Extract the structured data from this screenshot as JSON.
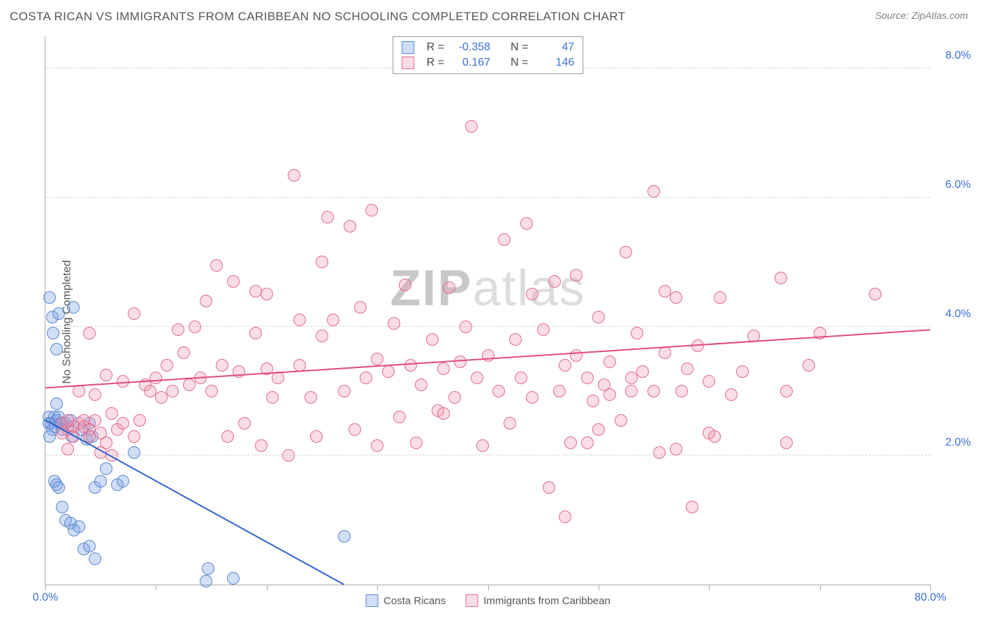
{
  "header": {
    "title": "COSTA RICAN VS IMMIGRANTS FROM CARIBBEAN NO SCHOOLING COMPLETED CORRELATION CHART",
    "source_prefix": "Source: ",
    "source_name": "ZipAtlas.com"
  },
  "chart": {
    "type": "scatter",
    "ylabel": "No Schooling Completed",
    "watermark": "ZIPatlas",
    "xlim": [
      0,
      80
    ],
    "ylim": [
      0,
      8.5
    ],
    "x_ticks": [
      0,
      10,
      20,
      30,
      40,
      50,
      60,
      70,
      80
    ],
    "x_tick_labels": {
      "0": "0.0%",
      "80": "80.0%"
    },
    "y_gridlines": [
      2,
      4,
      6,
      8
    ],
    "y_tick_labels": {
      "2": "2.0%",
      "4": "4.0%",
      "6": "6.0%",
      "8": "8.0%"
    },
    "background_color": "#ffffff",
    "grid_color": "#d5d5d5",
    "axis_color": "#aaaaaa",
    "label_color": "#3b6fd8",
    "marker_radius": 9,
    "marker_stroke_width": 1.2,
    "series": [
      {
        "key": "costa_ricans",
        "label": "Costa Ricans",
        "fill": "rgba(120,160,230,0.35)",
        "stroke": "#5b86d0",
        "trend": {
          "x1": 0,
          "y1": 2.55,
          "x2": 27,
          "y2": 0,
          "color": "#2e62c9",
          "width": 2
        },
        "R": "-0.358",
        "N": "47",
        "points": [
          [
            0.3,
            2.6
          ],
          [
            0.3,
            2.5
          ],
          [
            0.5,
            2.5
          ],
          [
            0.6,
            2.4
          ],
          [
            0.8,
            2.6
          ],
          [
            0.4,
            2.3
          ],
          [
            0.9,
            2.45
          ],
          [
            1.0,
            2.55
          ],
          [
            1.2,
            2.6
          ],
          [
            1.4,
            2.5
          ],
          [
            0.6,
            4.15
          ],
          [
            0.7,
            3.9
          ],
          [
            1.0,
            3.65
          ],
          [
            1.2,
            4.2
          ],
          [
            2.5,
            4.3
          ],
          [
            0.4,
            4.45
          ],
          [
            1.5,
            2.4
          ],
          [
            1.8,
            2.5
          ],
          [
            2.0,
            2.45
          ],
          [
            2.3,
            2.55
          ],
          [
            0.8,
            1.6
          ],
          [
            1.0,
            1.55
          ],
          [
            1.2,
            1.5
          ],
          [
            1.5,
            1.2
          ],
          [
            1.8,
            1.0
          ],
          [
            2.3,
            0.95
          ],
          [
            2.6,
            0.85
          ],
          [
            3.0,
            0.9
          ],
          [
            3.5,
            0.55
          ],
          [
            4.0,
            0.6
          ],
          [
            4.5,
            0.4
          ],
          [
            2.4,
            2.3
          ],
          [
            3.3,
            2.4
          ],
          [
            3.7,
            2.25
          ],
          [
            4.0,
            2.5
          ],
          [
            4.2,
            2.3
          ],
          [
            4.5,
            1.5
          ],
          [
            5.0,
            1.6
          ],
          [
            5.5,
            1.8
          ],
          [
            6.5,
            1.55
          ],
          [
            7.0,
            1.6
          ],
          [
            8.0,
            2.05
          ],
          [
            14.5,
            0.05
          ],
          [
            14.7,
            0.25
          ],
          [
            17.0,
            0.1
          ],
          [
            27.0,
            0.75
          ],
          [
            1.0,
            2.8
          ]
        ]
      },
      {
        "key": "caribbean",
        "label": "Immigrants from Caribbean",
        "fill": "rgba(240,150,175,0.32)",
        "stroke": "#e06a8e",
        "trend": {
          "x1": 0,
          "y1": 3.05,
          "x2": 80,
          "y2": 3.95,
          "color": "#e24a7a",
          "width": 2
        },
        "R": "0.167",
        "N": "146",
        "points": [
          [
            1.5,
            2.5
          ],
          [
            2.0,
            2.4
          ],
          [
            2.5,
            2.45
          ],
          [
            3.0,
            2.5
          ],
          [
            3.5,
            2.55
          ],
          [
            4.0,
            2.4
          ],
          [
            4.5,
            2.55
          ],
          [
            5.0,
            2.35
          ],
          [
            5.5,
            2.2
          ],
          [
            6.0,
            2.65
          ],
          [
            6.5,
            2.4
          ],
          [
            7.0,
            2.5
          ],
          [
            8.0,
            2.3
          ],
          [
            8.5,
            2.55
          ],
          [
            9.0,
            3.1
          ],
          [
            9.5,
            3.0
          ],
          [
            10,
            3.2
          ],
          [
            10.5,
            2.9
          ],
          [
            11,
            3.4
          ],
          [
            11.5,
            3.0
          ],
          [
            12,
            3.95
          ],
          [
            12.5,
            3.6
          ],
          [
            13,
            3.1
          ],
          [
            13.5,
            4.0
          ],
          [
            14,
            3.2
          ],
          [
            14.5,
            4.4
          ],
          [
            15,
            3.0
          ],
          [
            15.5,
            4.95
          ],
          [
            16,
            3.4
          ],
          [
            16.5,
            2.3
          ],
          [
            17,
            4.7
          ],
          [
            17.5,
            3.3
          ],
          [
            18,
            2.5
          ],
          [
            19,
            3.9
          ],
          [
            19.5,
            2.15
          ],
          [
            20,
            4.5
          ],
          [
            20.5,
            2.9
          ],
          [
            21,
            3.2
          ],
          [
            22,
            2.0
          ],
          [
            22.5,
            6.35
          ],
          [
            23,
            3.4
          ],
          [
            24,
            2.9
          ],
          [
            24.5,
            2.3
          ],
          [
            25,
            3.85
          ],
          [
            25.5,
            5.7
          ],
          [
            26,
            4.1
          ],
          [
            27,
            3.0
          ],
          [
            27.5,
            5.55
          ],
          [
            28,
            2.4
          ],
          [
            28.5,
            4.3
          ],
          [
            29,
            3.2
          ],
          [
            29.5,
            5.8
          ],
          [
            30,
            3.5
          ],
          [
            30,
            2.15
          ],
          [
            31,
            3.3
          ],
          [
            31.5,
            4.05
          ],
          [
            32,
            2.6
          ],
          [
            32.5,
            4.65
          ],
          [
            33,
            3.4
          ],
          [
            33.5,
            2.2
          ],
          [
            34,
            3.1
          ],
          [
            35,
            3.8
          ],
          [
            35.5,
            2.7
          ],
          [
            36,
            3.35
          ],
          [
            36.5,
            4.6
          ],
          [
            37,
            2.9
          ],
          [
            37.5,
            3.45
          ],
          [
            38,
            4.0
          ],
          [
            38.5,
            7.1
          ],
          [
            39,
            3.2
          ],
          [
            39.5,
            2.15
          ],
          [
            40,
            3.55
          ],
          [
            41,
            3.0
          ],
          [
            41.5,
            5.35
          ],
          [
            42,
            2.5
          ],
          [
            42.5,
            3.8
          ],
          [
            43,
            3.2
          ],
          [
            43.5,
            5.6
          ],
          [
            44,
            2.9
          ],
          [
            45,
            3.95
          ],
          [
            45.5,
            1.5
          ],
          [
            46,
            4.7
          ],
          [
            46.5,
            3.0
          ],
          [
            47,
            3.4
          ],
          [
            47.5,
            2.2
          ],
          [
            48,
            4.8
          ],
          [
            49,
            3.2
          ],
          [
            49.5,
            2.85
          ],
          [
            50,
            4.15
          ],
          [
            50.5,
            3.1
          ],
          [
            51,
            3.45
          ],
          [
            52,
            2.55
          ],
          [
            52.5,
            5.15
          ],
          [
            53,
            3.0
          ],
          [
            53.5,
            3.9
          ],
          [
            54,
            3.3
          ],
          [
            55,
            6.1
          ],
          [
            55.5,
            2.05
          ],
          [
            56,
            3.6
          ],
          [
            57,
            4.45
          ],
          [
            57.5,
            3.0
          ],
          [
            58,
            3.35
          ],
          [
            58.5,
            1.2
          ],
          [
            59,
            3.7
          ],
          [
            60,
            3.15
          ],
          [
            60.5,
            2.3
          ],
          [
            61,
            4.45
          ],
          [
            62,
            2.95
          ],
          [
            63,
            3.3
          ],
          [
            64,
            3.85
          ],
          [
            66.5,
            4.75
          ],
          [
            67,
            3.0
          ],
          [
            69,
            3.4
          ],
          [
            70,
            3.9
          ],
          [
            75,
            4.5
          ],
          [
            55,
            3.0
          ],
          [
            44,
            4.5
          ],
          [
            47,
            1.05
          ],
          [
            56,
            4.55
          ],
          [
            60,
            2.35
          ],
          [
            48,
            3.55
          ],
          [
            67,
            2.2
          ],
          [
            57,
            2.1
          ],
          [
            50,
            2.4
          ],
          [
            51,
            2.95
          ],
          [
            49,
            2.2
          ],
          [
            53,
            3.2
          ],
          [
            36,
            2.65
          ],
          [
            20,
            3.35
          ],
          [
            23,
            4.1
          ],
          [
            25,
            5.0
          ],
          [
            19,
            4.55
          ],
          [
            4,
            2.3
          ],
          [
            4.5,
            2.95
          ],
          [
            5,
            2.05
          ],
          [
            5.5,
            3.25
          ],
          [
            6,
            2.0
          ],
          [
            7,
            3.15
          ],
          [
            2,
            2.55
          ],
          [
            3,
            3.0
          ],
          [
            3.5,
            2.45
          ],
          [
            4,
            3.9
          ],
          [
            2.5,
            2.3
          ],
          [
            8,
            4.2
          ],
          [
            1.5,
            2.35
          ],
          [
            2,
            2.1
          ]
        ]
      }
    ],
    "legend_top": {
      "r_label": "R =",
      "n_label": "N ="
    }
  }
}
